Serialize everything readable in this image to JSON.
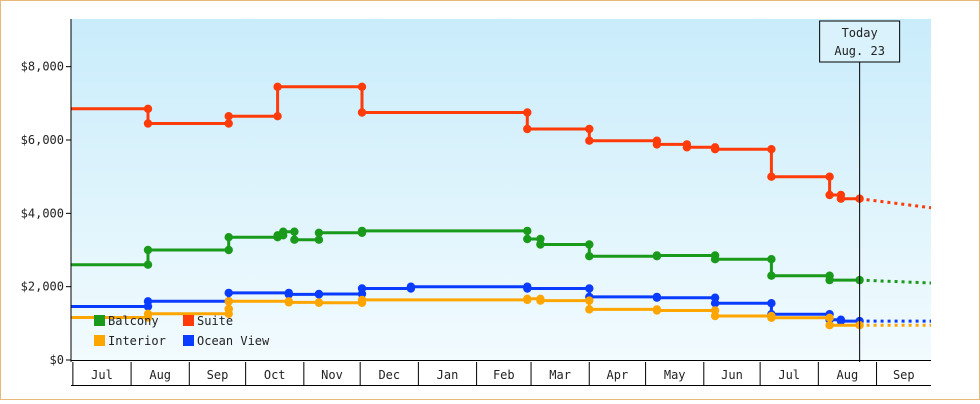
{
  "chart_data": {
    "type": "line",
    "style": "step",
    "title": "",
    "xlabel": "",
    "ylabel": "",
    "x_axis": {
      "type": "date",
      "range": [
        "2019-06-30",
        "2020-09-30"
      ],
      "month_labels": [
        "Jul",
        "Aug",
        "Sep",
        "Oct",
        "Nov",
        "Dec",
        "Jan",
        "Feb",
        "Mar",
        "Apr",
        "May",
        "Jun",
        "Jul",
        "Aug",
        "Sep"
      ],
      "month_starts": [
        "2019-07-01",
        "2019-08-01",
        "2019-09-01",
        "2019-10-01",
        "2019-11-01",
        "2019-12-01",
        "2020-01-01",
        "2020-02-01",
        "2020-03-01",
        "2020-04-01",
        "2020-05-01",
        "2020-06-01",
        "2020-07-01",
        "2020-08-01",
        "2020-09-01",
        "2020-10-01"
      ]
    },
    "y_axis": {
      "ylim": [
        0,
        9300
      ],
      "ticks": [
        0,
        2000,
        4000,
        6000,
        8000
      ],
      "tick_labels": [
        "$0",
        "$2,000",
        "$4,000",
        "$6,000",
        "$8,000"
      ]
    },
    "grid": false,
    "today": {
      "label_line1": "Today",
      "label_line2": "Aug. 23",
      "date": "2020-08-23"
    },
    "legend": {
      "placement": "bottom-left",
      "entries": [
        {
          "name": "Balcony",
          "color": "#1a9a1a"
        },
        {
          "name": "Suite",
          "color": "#ff3b0a"
        },
        {
          "name": "Interior",
          "color": "#ffa500"
        },
        {
          "name": "Ocean View",
          "color": "#0a3cff"
        }
      ]
    },
    "series": [
      {
        "name": "Suite",
        "color": "#ff3b0a",
        "points": [
          [
            "2019-06-30",
            6850
          ],
          [
            "2019-08-10",
            6850
          ],
          [
            "2019-08-10",
            6450
          ],
          [
            "2019-09-22",
            6450
          ],
          [
            "2019-09-22",
            6650
          ],
          [
            "2019-10-18",
            6650
          ],
          [
            "2019-10-18",
            7450
          ],
          [
            "2019-10-24",
            7450
          ],
          [
            "2019-12-02",
            7450
          ],
          [
            "2019-12-02",
            6750
          ],
          [
            "2020-02-28",
            6750
          ],
          [
            "2020-02-28",
            6300
          ],
          [
            "2020-04-01",
            6300
          ],
          [
            "2020-04-01",
            5980
          ],
          [
            "2020-05-07",
            5980
          ],
          [
            "2020-05-07",
            5880
          ],
          [
            "2020-05-23",
            5880
          ],
          [
            "2020-05-23",
            5800
          ],
          [
            "2020-06-07",
            5800
          ],
          [
            "2020-06-07",
            5750
          ],
          [
            "2020-07-07",
            5750
          ],
          [
            "2020-07-07",
            5000
          ],
          [
            "2020-08-07",
            5000
          ],
          [
            "2020-08-07",
            4500
          ],
          [
            "2020-08-13",
            4500
          ],
          [
            "2020-08-13",
            4400
          ],
          [
            "2020-08-23",
            4400
          ]
        ],
        "forecast": [
          [
            "2020-08-23",
            4400
          ],
          [
            "2020-09-30",
            4150
          ]
        ]
      },
      {
        "name": "Balcony",
        "color": "#1a9a1a",
        "points": [
          [
            "2019-06-30",
            2600
          ],
          [
            "2019-08-10",
            2600
          ],
          [
            "2019-08-10",
            3000
          ],
          [
            "2019-09-22",
            3000
          ],
          [
            "2019-09-22",
            3350
          ],
          [
            "2019-10-18",
            3350
          ],
          [
            "2019-10-18",
            3400
          ],
          [
            "2019-10-21",
            3400
          ],
          [
            "2019-10-21",
            3500
          ],
          [
            "2019-10-27",
            3500
          ],
          [
            "2019-10-27",
            3280
          ],
          [
            "2019-11-09",
            3280
          ],
          [
            "2019-11-09",
            3470
          ],
          [
            "2019-12-02",
            3470
          ],
          [
            "2019-12-02",
            3520
          ],
          [
            "2020-02-28",
            3520
          ],
          [
            "2020-02-28",
            3300
          ],
          [
            "2020-03-06",
            3300
          ],
          [
            "2020-03-06",
            3150
          ],
          [
            "2020-04-01",
            3150
          ],
          [
            "2020-04-01",
            2830
          ],
          [
            "2020-05-07",
            2830
          ],
          [
            "2020-05-07",
            2850
          ],
          [
            "2020-06-07",
            2850
          ],
          [
            "2020-06-07",
            2750
          ],
          [
            "2020-07-07",
            2750
          ],
          [
            "2020-07-07",
            2300
          ],
          [
            "2020-08-07",
            2300
          ],
          [
            "2020-08-07",
            2180
          ],
          [
            "2020-08-23",
            2180
          ]
        ],
        "forecast": [
          [
            "2020-08-23",
            2180
          ],
          [
            "2020-09-30",
            2100
          ]
        ]
      },
      {
        "name": "Ocean View",
        "color": "#0a3cff",
        "points": [
          [
            "2019-06-30",
            1460
          ],
          [
            "2019-08-10",
            1460
          ],
          [
            "2019-08-10",
            1600
          ],
          [
            "2019-09-22",
            1600
          ],
          [
            "2019-09-22",
            1830
          ],
          [
            "2019-10-24",
            1830
          ],
          [
            "2019-10-24",
            1790
          ],
          [
            "2019-11-09",
            1790
          ],
          [
            "2019-11-09",
            1800
          ],
          [
            "2019-12-02",
            1800
          ],
          [
            "2019-12-02",
            1950
          ],
          [
            "2019-12-28",
            1950
          ],
          [
            "2019-12-28",
            2000
          ],
          [
            "2020-02-28",
            2000
          ],
          [
            "2020-02-28",
            1950
          ],
          [
            "2020-04-01",
            1950
          ],
          [
            "2020-04-01",
            1720
          ],
          [
            "2020-05-07",
            1720
          ],
          [
            "2020-05-07",
            1700
          ],
          [
            "2020-06-07",
            1700
          ],
          [
            "2020-06-07",
            1550
          ],
          [
            "2020-07-07",
            1550
          ],
          [
            "2020-07-07",
            1250
          ],
          [
            "2020-08-07",
            1250
          ],
          [
            "2020-08-07",
            1100
          ],
          [
            "2020-08-13",
            1100
          ],
          [
            "2020-08-13",
            1060
          ],
          [
            "2020-08-23",
            1060
          ]
        ],
        "forecast": [
          [
            "2020-08-23",
            1060
          ],
          [
            "2020-09-30",
            1060
          ]
        ]
      },
      {
        "name": "Interior",
        "color": "#ffa500",
        "points": [
          [
            "2019-06-30",
            1160
          ],
          [
            "2019-08-10",
            1160
          ],
          [
            "2019-08-10",
            1260
          ],
          [
            "2019-09-22",
            1260
          ],
          [
            "2019-09-22",
            1390
          ],
          [
            "2019-09-22",
            1600
          ],
          [
            "2019-10-24",
            1600
          ],
          [
            "2019-10-24",
            1570
          ],
          [
            "2019-11-09",
            1570
          ],
          [
            "2019-11-09",
            1560
          ],
          [
            "2019-12-02",
            1560
          ],
          [
            "2019-12-02",
            1640
          ],
          [
            "2020-02-28",
            1640
          ],
          [
            "2020-02-28",
            1670
          ],
          [
            "2020-03-06",
            1670
          ],
          [
            "2020-03-06",
            1620
          ],
          [
            "2020-04-01",
            1620
          ],
          [
            "2020-04-01",
            1380
          ],
          [
            "2020-05-07",
            1380
          ],
          [
            "2020-05-07",
            1350
          ],
          [
            "2020-06-07",
            1350
          ],
          [
            "2020-06-07",
            1200
          ],
          [
            "2020-07-07",
            1200
          ],
          [
            "2020-07-07",
            1150
          ],
          [
            "2020-08-07",
            1150
          ],
          [
            "2020-08-07",
            950
          ],
          [
            "2020-08-23",
            950
          ]
        ],
        "forecast": [
          [
            "2020-08-23",
            950
          ],
          [
            "2020-09-30",
            950
          ]
        ]
      }
    ],
    "colors": {
      "background_top": "#c9ecfb",
      "background_bottom": "#f2fbfe",
      "border": "#e8b77a",
      "axis": "#000000"
    }
  }
}
